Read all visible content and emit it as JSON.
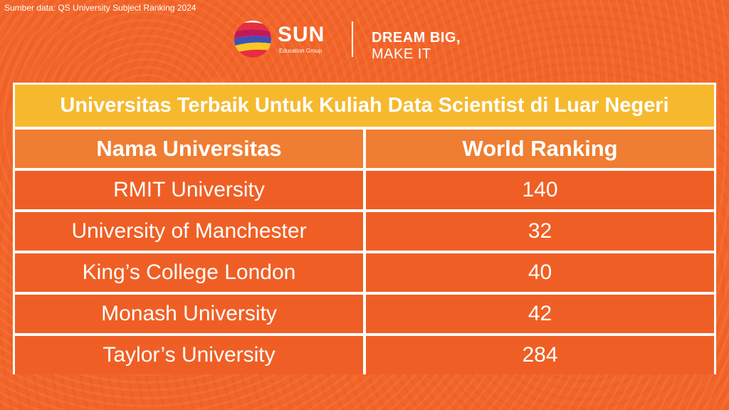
{
  "source_note": "Sumber data: QS University Subject Ranking 2024",
  "brand": {
    "name": "SUN",
    "sub": "Education Group",
    "tagline_bold": "DREAM BIG,",
    "tagline_rest": " MAKE IT"
  },
  "table": {
    "title": "Universitas Terbaik Untuk Kuliah Data Scientist di Luar Negeri",
    "headers": [
      "Nama Universitas",
      "World Ranking"
    ],
    "rows": [
      {
        "name": "RMIT University",
        "rank": "140"
      },
      {
        "name": "University of Manchester",
        "rank": "32"
      },
      {
        "name": "King’s College London",
        "rank": "40"
      },
      {
        "name": "Monash University",
        "rank": "42"
      },
      {
        "name": "Taylor’s University",
        "rank": "284"
      }
    ]
  },
  "colors": {
    "background": "#f2652a",
    "title_bar": "#f6b92e",
    "header_row": "#ef7e33",
    "data_row": "#ef5f25"
  }
}
